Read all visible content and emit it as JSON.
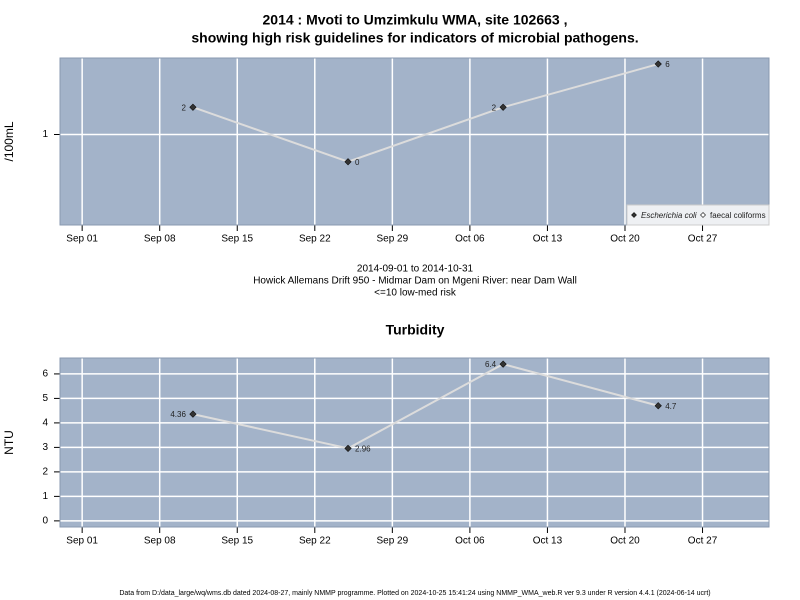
{
  "chart_data": [
    {
      "type": "line",
      "title": "2014 : Mvoti to Umzimkulu WMA, site 102663 ,",
      "subtitle": "showing high risk guidelines for indicators of microbial pathogens.",
      "ylabel": "/100mL",
      "yscale": "log",
      "x": [
        "2014-09-11",
        "2014-09-25",
        "2014-10-09",
        "2014-10-23"
      ],
      "series": [
        {
          "name": "Escherichia coli",
          "color": "#333333",
          "values": [
            2,
            0.5,
            2,
            6
          ],
          "value_labels": [
            "2",
            "0",
            "2",
            "6"
          ]
        },
        {
          "name": "faecal coliforms",
          "color": "#ffffff",
          "values": [
            null,
            null,
            null,
            null
          ]
        }
      ],
      "xlim": [
        "2014-08-30",
        "2014-11-02"
      ],
      "xticks": [
        {
          "value": "2014-09-01",
          "label": "Sep 01"
        },
        {
          "value": "2014-09-08",
          "label": "Sep 08"
        },
        {
          "value": "2014-09-15",
          "label": "Sep 15"
        },
        {
          "value": "2014-09-22",
          "label": "Sep 22"
        },
        {
          "value": "2014-09-29",
          "label": "Sep 29"
        },
        {
          "value": "2014-10-06",
          "label": "Oct 06"
        },
        {
          "value": "2014-10-13",
          "label": "Oct 13"
        },
        {
          "value": "2014-10-20",
          "label": "Oct 20"
        },
        {
          "value": "2014-10-27",
          "label": "Oct 27"
        }
      ],
      "ylim": [
        0.1,
        7
      ],
      "yticks": [
        1
      ],
      "grid": true,
      "legend": "bottom-right",
      "notes": [
        "2014-09-01 to 2014-10-31",
        "Howick Allemans Drift 950 - Midmar Dam on Mgeni River: near Dam Wall",
        "<=10 low-med risk"
      ]
    },
    {
      "type": "line",
      "title": "Turbidity",
      "ylabel": "NTU",
      "x": [
        "2014-09-11",
        "2014-09-25",
        "2014-10-09",
        "2014-10-23"
      ],
      "series": [
        {
          "name": "Turbidity",
          "color": "#333333",
          "values": [
            4.36,
            2.96,
            6.4,
            4.7
          ]
        }
      ],
      "xlim": [
        "2014-08-30",
        "2014-11-02"
      ],
      "xticks": [
        {
          "value": "2014-09-01",
          "label": "Sep 01"
        },
        {
          "value": "2014-09-08",
          "label": "Sep 08"
        },
        {
          "value": "2014-09-15",
          "label": "Sep 15"
        },
        {
          "value": "2014-09-22",
          "label": "Sep 22"
        },
        {
          "value": "2014-09-29",
          "label": "Sep 29"
        },
        {
          "value": "2014-10-06",
          "label": "Oct 06"
        },
        {
          "value": "2014-10-13",
          "label": "Oct 13"
        },
        {
          "value": "2014-10-20",
          "label": "Oct 20"
        },
        {
          "value": "2014-10-27",
          "label": "Oct 27"
        }
      ],
      "ylim": [
        -0.25,
        6.65
      ],
      "yticks": [
        0,
        1,
        2,
        3,
        4,
        5,
        6
      ],
      "grid": true
    }
  ],
  "footer": "Data from D:/data_large/wq/wms.db dated 2024-08-27, mainly NMMP programme. Plotted on 2024-10-25 15:41:24 using NMMP_WMA_web.R ver 9.3 under R version 4.4.1 (2024-06-14 ucrt)"
}
